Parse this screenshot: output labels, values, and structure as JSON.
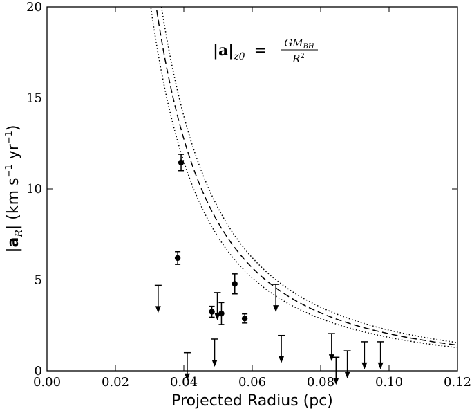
{
  "chart_data": {
    "type": "scatter",
    "xlabel": "Projected Radius (pc)",
    "ylabel_main": "|a",
    "ylabel_sub": "R",
    "ylabel_rest": "| (km s",
    "ylabel_exp1": "−1",
    "ylabel_mid": " yr",
    "ylabel_exp2": "−1",
    "ylabel_close": ")",
    "xlim": [
      0.0,
      0.12
    ],
    "ylim": [
      0,
      20
    ],
    "x_ticks": [
      0.0,
      0.02,
      0.04,
      0.06,
      0.08,
      0.1,
      0.12
    ],
    "x_tick_labels": [
      "0.00",
      "0.02",
      "0.04",
      "0.06",
      "0.08",
      "0.10",
      "0.12"
    ],
    "y_ticks": [
      0,
      5,
      10,
      15,
      20
    ],
    "y_tick_labels": [
      "0",
      "5",
      "10",
      "15",
      "20"
    ],
    "annotation": {
      "lhs_a": "|a|",
      "lhs_sub": "z0",
      "equals": "=",
      "numerator": "GM",
      "numerator_sub": "BH",
      "denominator": "R",
      "denominator_exp": "2"
    },
    "curve": {
      "name": "GM_BH / R^2",
      "k_central": 0.0204,
      "k_upper": 0.0224,
      "k_lower": 0.0184
    },
    "detections": [
      {
        "x": 0.0392,
        "y": 11.45,
        "err": 0.45
      },
      {
        "x": 0.0382,
        "y": 6.2,
        "err": 0.35
      },
      {
        "x": 0.0549,
        "y": 4.78,
        "err": 0.55
      },
      {
        "x": 0.0482,
        "y": 3.25,
        "err": 0.3
      },
      {
        "x": 0.051,
        "y": 3.15,
        "err": 0.6
      },
      {
        "x": 0.0578,
        "y": 2.88,
        "err": 0.25
      }
    ],
    "upper_limits": [
      {
        "x": 0.0325,
        "y": 4.7
      },
      {
        "x": 0.0498,
        "y": 4.3
      },
      {
        "x": 0.0669,
        "y": 4.75
      },
      {
        "x": 0.041,
        "y": 1.0
      },
      {
        "x": 0.049,
        "y": 1.75
      },
      {
        "x": 0.0685,
        "y": 1.95
      },
      {
        "x": 0.0832,
        "y": 2.05
      },
      {
        "x": 0.0845,
        "y": 0.75
      },
      {
        "x": 0.0878,
        "y": 1.1
      },
      {
        "x": 0.0928,
        "y": 1.6
      },
      {
        "x": 0.0975,
        "y": 1.6
      }
    ]
  }
}
